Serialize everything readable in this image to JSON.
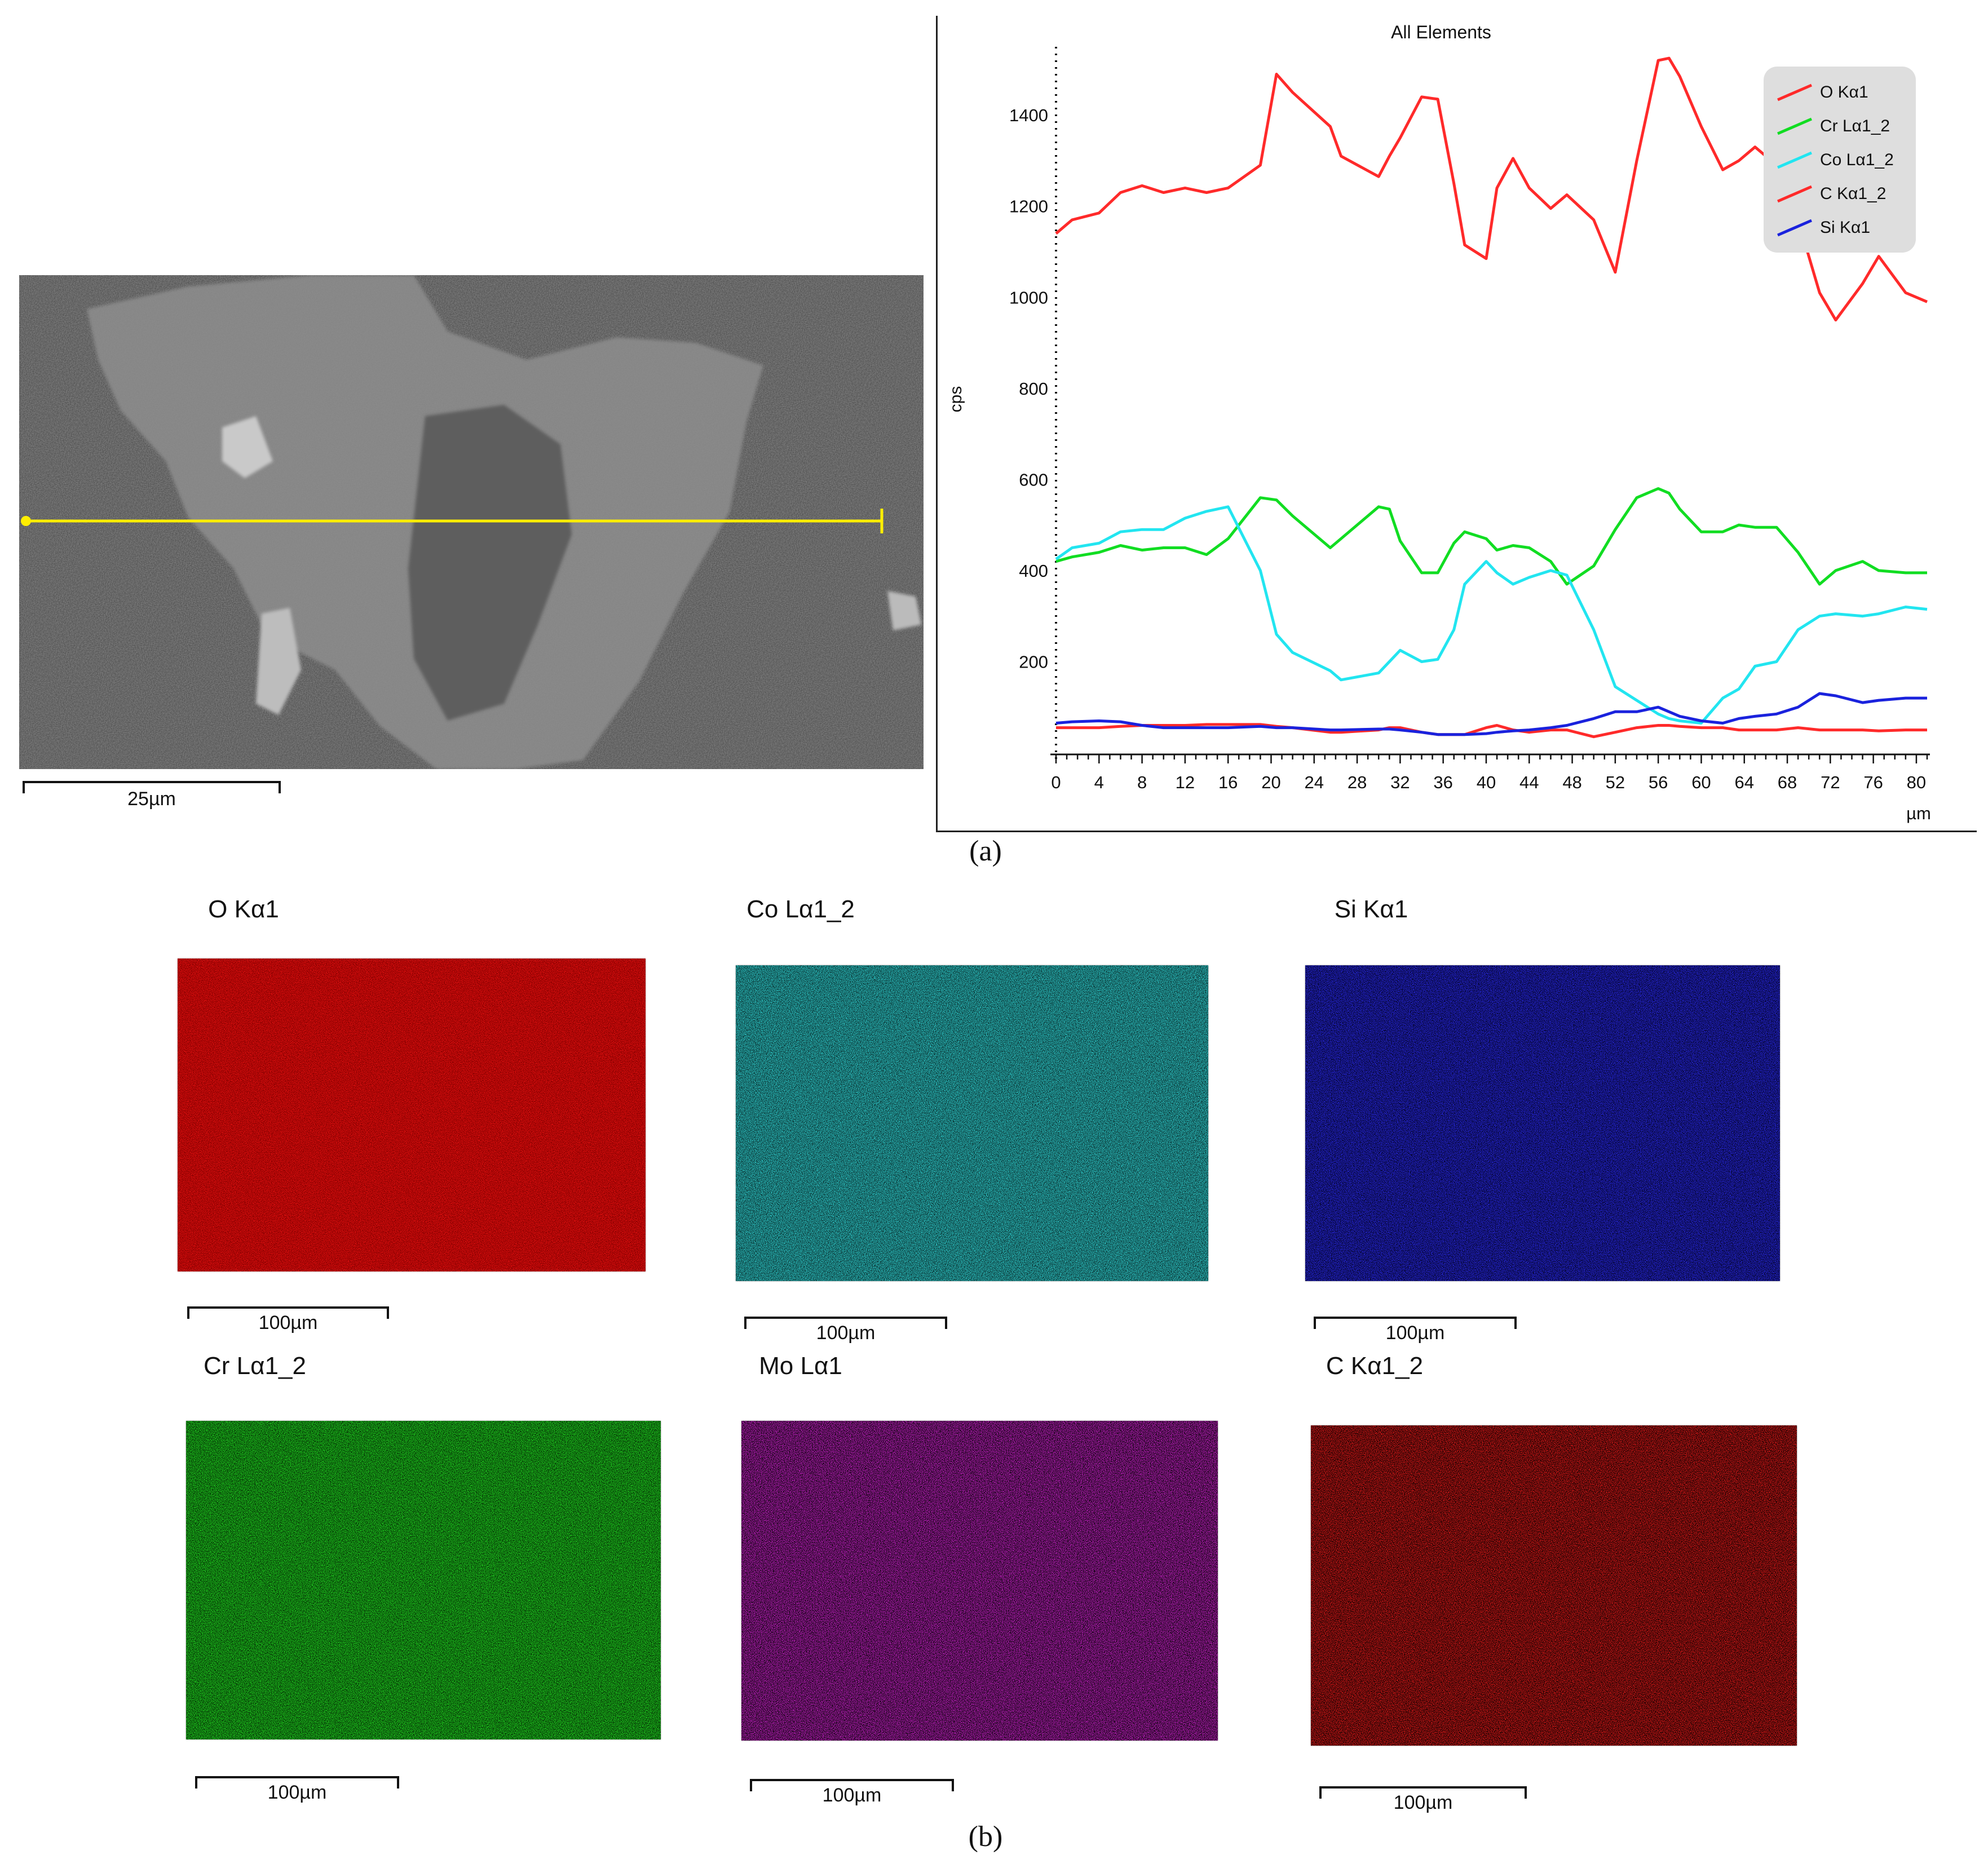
{
  "sem": {
    "scale_label": "25µm",
    "line_color": "#ffee00"
  },
  "captions": {
    "a": "(a)",
    "b": "(b)"
  },
  "chart_data": {
    "type": "line",
    "title": "All Elements",
    "xlabel": "µm",
    "ylabel": "cps",
    "xlim": [
      0,
      81
    ],
    "ylim": [
      0,
      1550
    ],
    "xticks": [
      0,
      4,
      8,
      12,
      16,
      20,
      24,
      28,
      32,
      36,
      40,
      44,
      48,
      52,
      56,
      60,
      64,
      68,
      72,
      76,
      80
    ],
    "yticks": [
      200,
      400,
      600,
      800,
      1000,
      1200,
      1400
    ],
    "x": [
      0,
      1.5,
      4,
      6,
      8,
      10,
      12,
      14,
      16,
      19,
      20.5,
      22,
      25.5,
      26.5,
      30,
      31,
      32,
      34,
      35.5,
      37,
      38,
      40,
      41,
      42.5,
      44,
      46,
      47.5,
      50,
      52,
      54,
      56,
      57,
      58,
      60,
      62,
      63.5,
      65,
      67,
      69,
      71,
      72.5,
      75,
      76.5,
      79,
      81
    ],
    "series": [
      {
        "name": "O Kα1",
        "color": "#ff2a2a",
        "values": [
          1140,
          1170,
          1185,
          1230,
          1245,
          1230,
          1240,
          1230,
          1240,
          1290,
          1490,
          1450,
          1375,
          1310,
          1265,
          1310,
          1350,
          1440,
          1435,
          1250,
          1115,
          1085,
          1240,
          1305,
          1240,
          1195,
          1225,
          1170,
          1055,
          1300,
          1520,
          1525,
          1485,
          1375,
          1280,
          1300,
          1330,
          1290,
          1170,
          1010,
          950,
          1030,
          1090,
          1010,
          990
        ]
      },
      {
        "name": "Cr Lα1_2",
        "color": "#11dd22",
        "values": [
          420,
          430,
          440,
          455,
          445,
          450,
          450,
          435,
          470,
          560,
          555,
          520,
          450,
          470,
          540,
          535,
          465,
          395,
          395,
          460,
          485,
          470,
          445,
          455,
          450,
          420,
          370,
          410,
          490,
          560,
          580,
          570,
          535,
          485,
          485,
          500,
          495,
          495,
          440,
          370,
          400,
          420,
          400,
          395,
          395
        ]
      },
      {
        "name": "Co Lα1_2",
        "color": "#22e5f0",
        "values": [
          425,
          450,
          460,
          485,
          490,
          490,
          515,
          530,
          540,
          400,
          260,
          220,
          180,
          160,
          175,
          200,
          225,
          200,
          205,
          270,
          370,
          420,
          395,
          370,
          385,
          400,
          390,
          270,
          145,
          115,
          85,
          75,
          70,
          65,
          120,
          140,
          190,
          200,
          270,
          300,
          305,
          300,
          305,
          320,
          315
        ]
      },
      {
        "name": "C Kα1_2",
        "color": "#ff2a2a",
        "values": [
          55,
          55,
          55,
          58,
          60,
          60,
          60,
          62,
          62,
          62,
          58,
          55,
          45,
          45,
          50,
          55,
          55,
          45,
          40,
          40,
          40,
          55,
          60,
          50,
          45,
          50,
          50,
          35,
          45,
          55,
          60,
          60,
          58,
          55,
          55,
          50,
          50,
          50,
          55,
          50,
          50,
          50,
          48,
          50,
          50
        ]
      },
      {
        "name": "Si Kα1",
        "color": "#1a22dd",
        "values": [
          65,
          68,
          70,
          68,
          60,
          55,
          55,
          55,
          55,
          58,
          55,
          55,
          50,
          50,
          52,
          52,
          50,
          45,
          40,
          40,
          40,
          42,
          45,
          48,
          50,
          55,
          60,
          75,
          90,
          90,
          100,
          90,
          80,
          70,
          65,
          75,
          80,
          85,
          100,
          130,
          125,
          110,
          115,
          120,
          120
        ]
      }
    ]
  },
  "maps": [
    {
      "title": "O Kα1",
      "scale_label": "100µm",
      "color": "#e01010",
      "bg": "#8a0000"
    },
    {
      "title": "Co Lα1_2",
      "scale_label": "100µm",
      "color": "#2ec8c8",
      "bg": "#0c3a3a"
    },
    {
      "title": "Si Kα1",
      "scale_label": "100µm",
      "color": "#2828e0",
      "bg": "#050530"
    },
    {
      "title": "Cr Lα1_2",
      "scale_label": "100µm",
      "color": "#20d020",
      "bg": "#063806"
    },
    {
      "title": "Mo Lα1",
      "scale_label": "100µm",
      "color": "#c020c0",
      "bg": "#150415"
    },
    {
      "title": "C Kα1_2",
      "scale_label": "100µm",
      "color": "#d81818",
      "bg": "#1a0202"
    }
  ]
}
